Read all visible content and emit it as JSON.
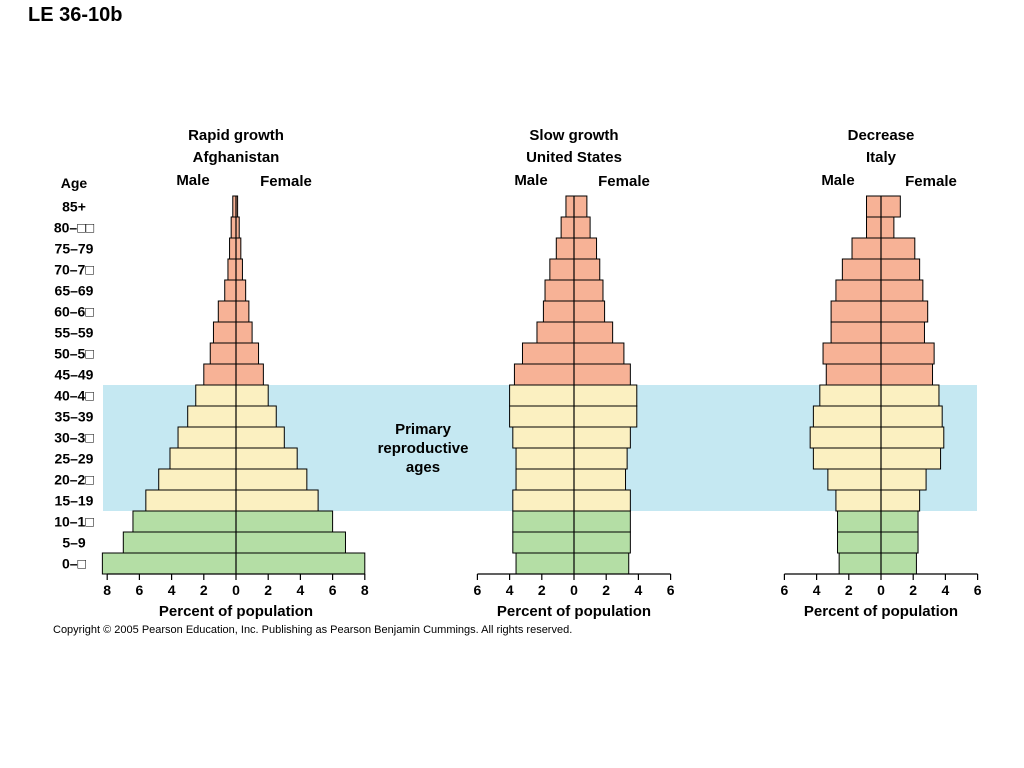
{
  "slide_title": "LE 36-10b",
  "age_header": "Age",
  "age_labels": [
    "85+",
    "80–□□",
    "75–79",
    "70–7□",
    "65–69",
    "60–6□",
    "55–59",
    "50–5□",
    "45–49",
    "40–4□",
    "35–39",
    "30–3□",
    "25–29",
    "20–2□",
    "15–19",
    "10–1□",
    "5–9",
    "0–□"
  ],
  "primary_label": [
    "Primary",
    "reproductive",
    "ages"
  ],
  "copyright": "Copyright ©  2005 Pearson Education, Inc. Publishing as Pearson Benjamin Cummings. All rights reserved.",
  "colors": {
    "post_reproductive": "#f7b296",
    "reproductive": "#fbf0c1",
    "pre_reproductive": "#b4dea5",
    "highlight_band": "#c5e8f2",
    "outline": "#000000"
  },
  "chart_data": [
    {
      "type": "bar",
      "orientation": "horizontal",
      "style": "population-pyramid",
      "title": "Rapid growth",
      "subtitle": "Afghanistan",
      "xlabel": "Percent of population",
      "xlim": [
        -8,
        8
      ],
      "xticks": [
        8,
        6,
        4,
        2,
        0,
        2,
        4,
        6,
        8
      ],
      "series": [
        {
          "name": "Male",
          "values": [
            0.2,
            0.3,
            0.4,
            0.5,
            0.7,
            1.1,
            1.4,
            1.6,
            2.0,
            2.5,
            3.0,
            3.6,
            4.1,
            4.8,
            5.6,
            6.4,
            7.0,
            8.3
          ]
        },
        {
          "name": "Female",
          "values": [
            0.1,
            0.2,
            0.3,
            0.4,
            0.6,
            0.8,
            1.0,
            1.4,
            1.7,
            2.0,
            2.5,
            3.0,
            3.8,
            4.4,
            5.1,
            6.0,
            6.8,
            8.0
          ]
        }
      ]
    },
    {
      "type": "bar",
      "orientation": "horizontal",
      "style": "population-pyramid",
      "title": "Slow growth",
      "subtitle": "United States",
      "xlabel": "Percent of population",
      "xlim": [
        -6,
        6
      ],
      "xticks": [
        6,
        4,
        2,
        0,
        2,
        4,
        6
      ],
      "series": [
        {
          "name": "Male",
          "values": [
            0.5,
            0.8,
            1.1,
            1.5,
            1.8,
            1.9,
            2.3,
            3.2,
            3.7,
            4.0,
            4.0,
            3.8,
            3.6,
            3.6,
            3.8,
            3.8,
            3.8,
            3.6
          ]
        },
        {
          "name": "Female",
          "values": [
            0.8,
            1.0,
            1.4,
            1.6,
            1.8,
            1.9,
            2.4,
            3.1,
            3.5,
            3.9,
            3.9,
            3.5,
            3.3,
            3.2,
            3.5,
            3.5,
            3.5,
            3.4
          ]
        }
      ]
    },
    {
      "type": "bar",
      "orientation": "horizontal",
      "style": "population-pyramid",
      "title": "Decrease",
      "subtitle": "Italy",
      "xlabel": "Percent of population",
      "xlim": [
        -6,
        6
      ],
      "xticks": [
        6,
        4,
        2,
        0,
        2,
        4,
        6
      ],
      "series": [
        {
          "name": "Male",
          "values": [
            0.9,
            0.9,
            1.8,
            2.4,
            2.8,
            3.1,
            3.1,
            3.6,
            3.4,
            3.8,
            4.2,
            4.4,
            4.2,
            3.3,
            2.8,
            2.7,
            2.7,
            2.6
          ]
        },
        {
          "name": "Female",
          "values": [
            1.2,
            0.8,
            2.1,
            2.4,
            2.6,
            2.9,
            2.7,
            3.3,
            3.2,
            3.6,
            3.8,
            3.9,
            3.7,
            2.8,
            2.4,
            2.3,
            2.3,
            2.2
          ]
        }
      ]
    }
  ]
}
